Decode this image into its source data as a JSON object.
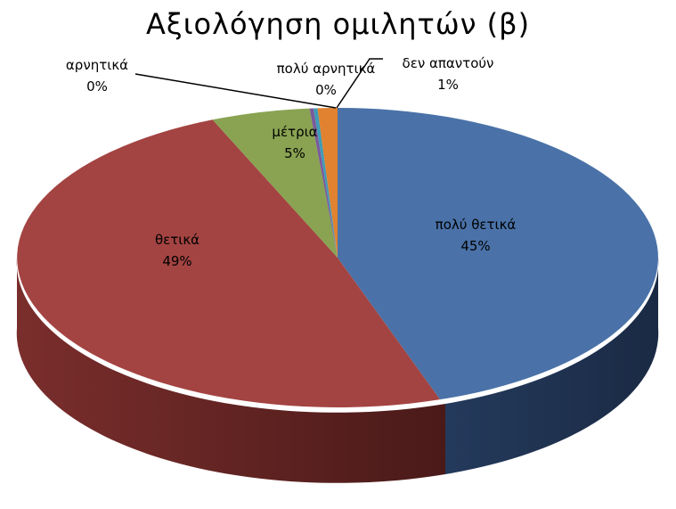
{
  "chart_data": {
    "type": "pie",
    "title": "Αξιολόγηση ομιλητών (β)",
    "slices": [
      {
        "label": "πολύ θετικά",
        "value": 45,
        "value_label": "45%",
        "color": "#4a72a8"
      },
      {
        "label": "θετικά",
        "value": 49,
        "value_label": "49%",
        "color": "#a34442"
      },
      {
        "label": "μέτρια",
        "value": 5,
        "value_label": "5%",
        "color": "#89a352"
      },
      {
        "label": "αρνητικά",
        "value": 0,
        "value_label": "0%",
        "color": "#7a5a9a"
      },
      {
        "label": "πολύ αρνητικά",
        "value": 0,
        "value_label": "0%",
        "color": "#3f9bb5"
      },
      {
        "label": "δεν απαντούν",
        "value": 1,
        "value_label": "1%",
        "color": "#e0822f"
      }
    ],
    "legend": "none"
  }
}
